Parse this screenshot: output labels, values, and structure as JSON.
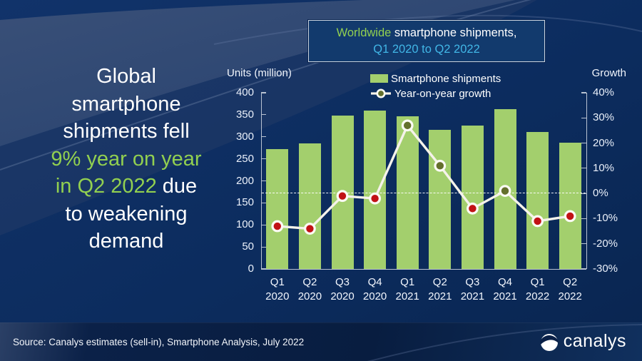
{
  "title_box": {
    "line1_segments": [
      {
        "text": "Worldwide",
        "color": "green"
      },
      {
        "text": " smartphone shipments,",
        "color": "white"
      }
    ],
    "line2": "Q1 2020 to Q2 2022"
  },
  "headline": {
    "lines": [
      [
        {
          "text": "Global",
          "color": "white"
        }
      ],
      [
        {
          "text": "smartphone",
          "color": "white"
        }
      ],
      [
        {
          "text": "shipments fell",
          "color": "white"
        }
      ],
      [
        {
          "text": "9% year on year",
          "color": "green"
        }
      ],
      [
        {
          "text": "in Q2 2022",
          "color": "green"
        },
        {
          "text": " due",
          "color": "white"
        }
      ],
      [
        {
          "text": "to weakening",
          "color": "white"
        }
      ],
      [
        {
          "text": "demand",
          "color": "white"
        }
      ]
    ]
  },
  "chart_data": {
    "type": "bar+line",
    "categories": [
      "Q1 2020",
      "Q2 2020",
      "Q3 2020",
      "Q4 2020",
      "Q1 2021",
      "Q2 2021",
      "Q3 2021",
      "Q4 2021",
      "Q1 2022",
      "Q2 2022"
    ],
    "series": [
      {
        "name": "Smartphone shipments",
        "type": "bar",
        "axis": "left",
        "values": [
          272,
          285,
          348,
          359,
          347,
          316,
          325,
          362,
          311,
          287
        ]
      },
      {
        "name": "Year-on-year growth",
        "type": "line",
        "axis": "right",
        "values": [
          -13,
          -14,
          -1,
          -2,
          27,
          11,
          -6,
          1,
          -11,
          -9
        ]
      }
    ],
    "left_axis": {
      "title": "Units (million)",
      "min": 0,
      "max": 400,
      "step": 50
    },
    "right_axis": {
      "title": "Growth",
      "min": -30,
      "max": 40,
      "step": 10,
      "suffix": "%"
    },
    "zero_line_on_right_axis": true,
    "legend_position": "top",
    "grid": "off"
  },
  "footer": {
    "source": "Source: Canalys estimates (sell-in), Smartphone Analysis, July 2022",
    "logo_text": "canalys"
  },
  "colors": {
    "accent_green": "#92d050",
    "accent_blue": "#41b6e6",
    "bar_green": "#a3cf6d",
    "line_cream": "#f5f2ea",
    "marker_negative": "#c11115",
    "marker_positive": "#64702c",
    "marker_ring": "#fbfaf4",
    "background_navy": "#0c2d5e"
  }
}
